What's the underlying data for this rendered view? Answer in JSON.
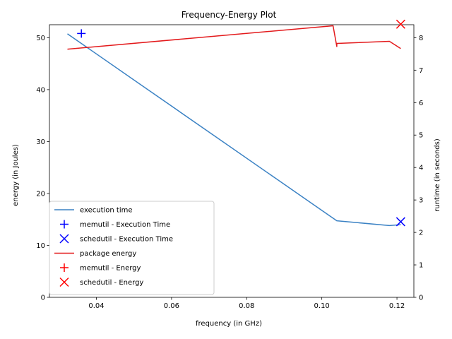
{
  "chart_data": {
    "type": "line",
    "title": "Frequency-Energy Plot",
    "xlabel": "frequency (in GHz)",
    "ylabel_left": "energy (in Joules)",
    "ylabel_right": "runtime (in seconds)",
    "xlim": [
      0.0275,
      0.1245
    ],
    "ylim_left": [
      0,
      52.5
    ],
    "ylim_right": [
      0,
      8.4
    ],
    "x_ticks": [
      "0.04",
      "0.06",
      "0.08",
      "0.10",
      "0.12"
    ],
    "x_tick_values": [
      0.04,
      0.06,
      0.08,
      0.1,
      0.12
    ],
    "y_left_ticks": [
      "0",
      "10",
      "20",
      "30",
      "40",
      "50"
    ],
    "y_left_tick_values": [
      0,
      10,
      20,
      30,
      40,
      50
    ],
    "y_right_ticks": [
      "0",
      "1",
      "2",
      "3",
      "4",
      "5",
      "6",
      "7",
      "8"
    ],
    "y_right_tick_values": [
      0,
      1,
      2,
      3,
      4,
      5,
      6,
      7,
      8
    ],
    "grid": false,
    "legend_position": "lower-left",
    "series": [
      {
        "name": "execution time",
        "axis": "right",
        "kind": "line",
        "color": "#3b82c4",
        "x": [
          0.0323,
          0.104,
          0.118,
          0.121
        ],
        "y": [
          8.12,
          2.36,
          2.21,
          2.24
        ]
      },
      {
        "name": "memutil - Execution Time",
        "axis": "right",
        "kind": "marker",
        "marker": "plus",
        "color": "#0000ff",
        "x": [
          0.036
        ],
        "y": [
          8.13
        ]
      },
      {
        "name": "schedutil - Execution Time",
        "axis": "right",
        "kind": "marker",
        "marker": "x",
        "color": "#0000ff",
        "x": [
          0.121
        ],
        "y": [
          2.33
        ]
      },
      {
        "name": "package energy",
        "axis": "left",
        "kind": "line",
        "color": "#e31a1c",
        "x": [
          0.0323,
          0.103,
          0.104,
          0.104,
          0.118,
          0.121
        ],
        "y": [
          47.8,
          52.3,
          48.3,
          48.9,
          49.3,
          47.9
        ]
      },
      {
        "name": "memutil - Energy",
        "axis": "left",
        "kind": "marker",
        "marker": "plus",
        "color": "#ff0000",
        "x": [],
        "y": []
      },
      {
        "name": "schedutil - Energy",
        "axis": "left",
        "kind": "marker",
        "marker": "x",
        "color": "#ff0000",
        "x": [
          0.121
        ],
        "y": [
          52.6
        ]
      }
    ]
  }
}
